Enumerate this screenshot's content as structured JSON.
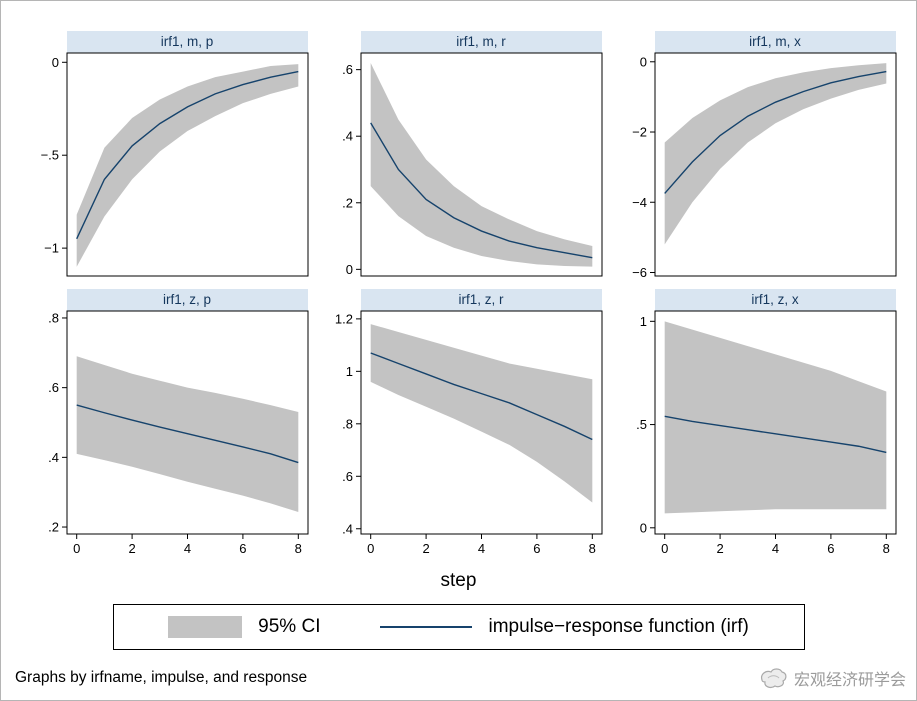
{
  "style": {
    "accent_navy": "#16436c",
    "ci_gray": "#c3c3c3",
    "title_bg": "#d9e5f1",
    "title_color": "#14365c",
    "plot_border": "#000000",
    "watermark_gray": "#9b9b9b"
  },
  "xlabel": "step",
  "xlim": [
    -0.35,
    8.35
  ],
  "xticks": [
    {
      "v": 0,
      "label": "0"
    },
    {
      "v": 2,
      "label": "2"
    },
    {
      "v": 4,
      "label": "4"
    },
    {
      "v": 6,
      "label": "6"
    },
    {
      "v": 8,
      "label": "8"
    }
  ],
  "legend": {
    "ci_label": "95% CI",
    "irf_label": "impulse−response function (irf)"
  },
  "footer": {
    "note": "Graphs by irfname, impulse, and response",
    "watermark": "宏观经济研学会"
  },
  "chart_data": [
    {
      "type": "line",
      "title": "irf1, m, p",
      "x": [
        0,
        1,
        2,
        3,
        4,
        5,
        6,
        7,
        8
      ],
      "series": [
        {
          "name": "impulse-response function (irf)",
          "values": [
            -0.95,
            -0.63,
            -0.45,
            -0.33,
            -0.24,
            -0.17,
            -0.12,
            -0.08,
            -0.05
          ]
        }
      ],
      "ci_lower": [
        -1.1,
        -0.83,
        -0.63,
        -0.48,
        -0.37,
        -0.29,
        -0.22,
        -0.17,
        -0.13
      ],
      "ci_upper": [
        -0.82,
        -0.46,
        -0.3,
        -0.2,
        -0.13,
        -0.08,
        -0.05,
        -0.02,
        -0.01
      ],
      "ylim": [
        -1.15,
        0.05
      ],
      "yticks": [
        {
          "v": 0,
          "label": "0"
        },
        {
          "v": -0.5,
          "label": "−.5"
        },
        {
          "v": -1,
          "label": "−1"
        }
      ],
      "show_xticks": false
    },
    {
      "type": "line",
      "title": "irf1, m, r",
      "x": [
        0,
        1,
        2,
        3,
        4,
        5,
        6,
        7,
        8
      ],
      "series": [
        {
          "name": "impulse-response function (irf)",
          "values": [
            0.44,
            0.3,
            0.21,
            0.155,
            0.115,
            0.085,
            0.065,
            0.05,
            0.035
          ]
        }
      ],
      "ci_lower": [
        0.25,
        0.16,
        0.1,
        0.065,
        0.04,
        0.025,
        0.015,
        0.01,
        0.008
      ],
      "ci_upper": [
        0.62,
        0.45,
        0.33,
        0.25,
        0.19,
        0.15,
        0.115,
        0.09,
        0.07
      ],
      "ylim": [
        -0.02,
        0.65
      ],
      "yticks": [
        {
          "v": 0.6,
          "label": ".6"
        },
        {
          "v": 0.4,
          "label": ".4"
        },
        {
          "v": 0.2,
          "label": ".2"
        },
        {
          "v": 0,
          "label": "0"
        }
      ],
      "show_xticks": false
    },
    {
      "type": "line",
      "title": "irf1, m, x",
      "x": [
        0,
        1,
        2,
        3,
        4,
        5,
        6,
        7,
        8
      ],
      "series": [
        {
          "name": "impulse-response function (irf)",
          "values": [
            -3.75,
            -2.85,
            -2.1,
            -1.55,
            -1.15,
            -0.85,
            -0.6,
            -0.42,
            -0.28
          ]
        }
      ],
      "ci_lower": [
        -5.2,
        -4.0,
        -3.05,
        -2.3,
        -1.75,
        -1.35,
        -1.05,
        -0.8,
        -0.62
      ],
      "ci_upper": [
        -2.3,
        -1.6,
        -1.1,
        -0.72,
        -0.47,
        -0.3,
        -0.18,
        -0.1,
        -0.04
      ],
      "ylim": [
        -6.1,
        0.25
      ],
      "yticks": [
        {
          "v": 0,
          "label": "0"
        },
        {
          "v": -2,
          "label": "−2"
        },
        {
          "v": -4,
          "label": "−4"
        },
        {
          "v": -6,
          "label": "−6"
        }
      ],
      "show_xticks": false
    },
    {
      "type": "line",
      "title": "irf1, z, p",
      "x": [
        0,
        1,
        2,
        3,
        4,
        5,
        6,
        7,
        8
      ],
      "series": [
        {
          "name": "impulse-response function (irf)",
          "values": [
            0.55,
            0.528,
            0.507,
            0.487,
            0.468,
            0.449,
            0.43,
            0.41,
            0.385
          ]
        }
      ],
      "ci_lower": [
        0.41,
        0.392,
        0.373,
        0.352,
        0.33,
        0.31,
        0.29,
        0.268,
        0.243
      ],
      "ci_upper": [
        0.69,
        0.665,
        0.64,
        0.62,
        0.6,
        0.585,
        0.568,
        0.55,
        0.53
      ],
      "ylim": [
        0.18,
        0.82
      ],
      "yticks": [
        {
          "v": 0.8,
          "label": ".8"
        },
        {
          "v": 0.6,
          "label": ".6"
        },
        {
          "v": 0.4,
          "label": ".4"
        },
        {
          "v": 0.2,
          "label": ".2"
        }
      ],
      "show_xticks": true
    },
    {
      "type": "line",
      "title": "irf1, z, r",
      "x": [
        0,
        1,
        2,
        3,
        4,
        5,
        6,
        7,
        8
      ],
      "series": [
        {
          "name": "impulse-response function (irf)",
          "values": [
            1.07,
            1.03,
            0.99,
            0.95,
            0.915,
            0.88,
            0.835,
            0.79,
            0.74
          ]
        }
      ],
      "ci_lower": [
        0.96,
        0.91,
        0.865,
        0.82,
        0.77,
        0.72,
        0.655,
        0.58,
        0.5
      ],
      "ci_upper": [
        1.18,
        1.15,
        1.12,
        1.09,
        1.06,
        1.03,
        1.01,
        0.99,
        0.97
      ],
      "ylim": [
        0.38,
        1.23
      ],
      "yticks": [
        {
          "v": 1.2,
          "label": "1.2"
        },
        {
          "v": 1,
          "label": "1"
        },
        {
          "v": 0.8,
          "label": ".8"
        },
        {
          "v": 0.6,
          "label": ".6"
        },
        {
          "v": 0.4,
          "label": ".4"
        }
      ],
      "show_xticks": true
    },
    {
      "type": "line",
      "title": "irf1, z, x",
      "x": [
        0,
        1,
        2,
        3,
        4,
        5,
        6,
        7,
        8
      ],
      "series": [
        {
          "name": "impulse-response function (irf)",
          "values": [
            0.54,
            0.515,
            0.495,
            0.475,
            0.455,
            0.435,
            0.415,
            0.395,
            0.365
          ]
        }
      ],
      "ci_lower": [
        0.07,
        0.075,
        0.08,
        0.085,
        0.09,
        0.09,
        0.09,
        0.09,
        0.09
      ],
      "ci_upper": [
        1.0,
        0.96,
        0.92,
        0.88,
        0.84,
        0.8,
        0.76,
        0.71,
        0.66
      ],
      "ylim": [
        -0.03,
        1.05
      ],
      "yticks": [
        {
          "v": 1,
          "label": "1"
        },
        {
          "v": 0.5,
          "label": ".5"
        },
        {
          "v": 0,
          "label": "0"
        }
      ],
      "show_xticks": true
    }
  ]
}
